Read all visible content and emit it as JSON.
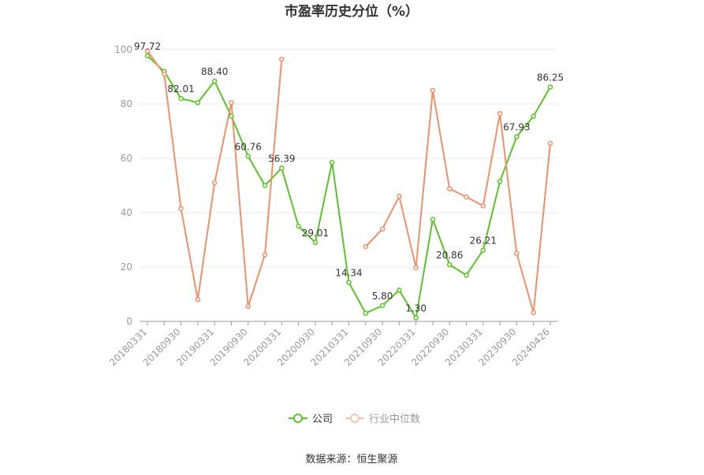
{
  "chart_data": {
    "type": "line",
    "title": "市盈率历史分位（%）",
    "x": [
      "20180331",
      "20180630",
      "20180930",
      "20181231",
      "20190331",
      "20190630",
      "20190930",
      "20191231",
      "20200331",
      "20200630",
      "20200930",
      "20201231",
      "20210331",
      "20210630",
      "20210930",
      "20211231",
      "20220331",
      "20220630",
      "20220930",
      "20221231",
      "20230331",
      "20230630",
      "20230930",
      "20231231",
      "20240426"
    ],
    "x_tick_labels": [
      "20180331",
      "20180930",
      "20190331",
      "20190930",
      "20200331",
      "20200930",
      "20210331",
      "20210930",
      "20220331",
      "20220930",
      "20230331",
      "20230930",
      "20240426"
    ],
    "ylim": [
      0,
      100
    ],
    "y_ticks": [
      0,
      20,
      40,
      60,
      80,
      100
    ],
    "grid": true,
    "legend_position": "bottom",
    "series": [
      {
        "name": "公司",
        "color": "#5cc22a",
        "values": [
          97.72,
          92.0,
          82.01,
          80.5,
          88.4,
          75.5,
          60.76,
          50.0,
          56.39,
          35.0,
          29.01,
          58.5,
          14.34,
          3.0,
          5.8,
          11.5,
          1.3,
          37.5,
          20.86,
          17.0,
          26.21,
          51.5,
          67.93,
          75.5,
          86.25
        ],
        "data_labels": [
          {
            "index": 0,
            "text": "97.72"
          },
          {
            "index": 2,
            "text": "82.01"
          },
          {
            "index": 4,
            "text": "88.40"
          },
          {
            "index": 6,
            "text": "60.76"
          },
          {
            "index": 8,
            "text": "56.39"
          },
          {
            "index": 10,
            "text": "29.01"
          },
          {
            "index": 12,
            "text": "14.34"
          },
          {
            "index": 14,
            "text": "5.80"
          },
          {
            "index": 16,
            "text": "1.30"
          },
          {
            "index": 18,
            "text": "20.86"
          },
          {
            "index": 20,
            "text": "26.21"
          },
          {
            "index": 22,
            "text": "67.93"
          },
          {
            "index": 24,
            "text": "86.25"
          }
        ]
      },
      {
        "name": "行业中位数",
        "color": "#f0906a",
        "values": [
          99.5,
          91.0,
          41.5,
          8.0,
          51.0,
          80.5,
          5.5,
          24.5,
          96.5,
          null,
          null,
          null,
          null,
          27.5,
          34.0,
          46.0,
          19.8,
          85.0,
          48.8,
          45.8,
          42.5,
          76.5,
          25.0,
          3.2,
          65.5
        ],
        "data_labels": []
      }
    ]
  },
  "footer": {
    "source": "数据来源：恒生聚源"
  }
}
